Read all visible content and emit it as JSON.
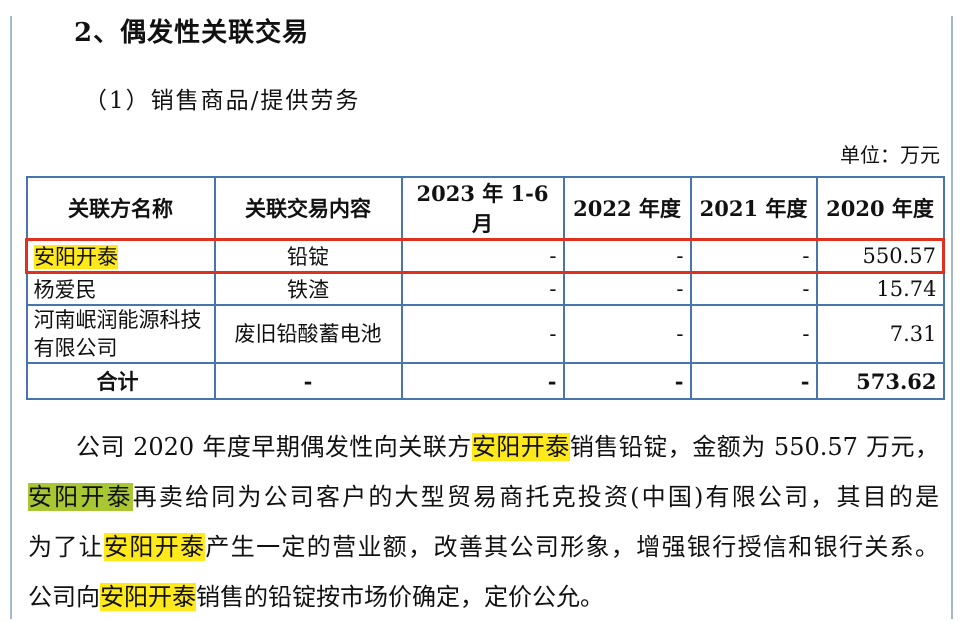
{
  "page": {
    "title": "2、偶发性关联交易",
    "subtitle": "（1）销售商品/提供劳务",
    "unit_label": "单位：万元"
  },
  "colors": {
    "table_border": "#4676ac",
    "red_box": "#e0301e",
    "highlight_yellow": "#ffe91a",
    "highlight_green": "#a9c633",
    "frame_line": "#a3b8cc"
  },
  "table": {
    "headers": [
      "关联方名称",
      "关联交易内容",
      "2023 年 1-6 月",
      "2022 年度",
      "2021 年度",
      "2020 年度"
    ],
    "rows": [
      {
        "name": "安阳开泰",
        "name_highlight": true,
        "red_box": true,
        "content": "铅锭",
        "values": [
          "-",
          "-",
          "-",
          "550.57"
        ]
      },
      {
        "name": "杨爱民",
        "name_highlight": false,
        "red_box": false,
        "content": "铁渣",
        "values": [
          "-",
          "-",
          "-",
          "15.74"
        ]
      },
      {
        "name": "河南岷润能源科技有限公司",
        "name_highlight": false,
        "red_box": false,
        "tall": true,
        "content": "废旧铅酸蓄电池",
        "values": [
          "-",
          "-",
          "-",
          "7.31"
        ]
      }
    ],
    "total_row": {
      "name": "合计",
      "content": "-",
      "values": [
        "-",
        "-",
        "-",
        "573.62"
      ]
    }
  },
  "paragraph": {
    "lines": [
      {
        "indent": true,
        "justify": true,
        "segments": [
          {
            "t": "公司 2020 年度早期偶发性向关联方"
          },
          {
            "t": "安阳开泰",
            "h": "yellow"
          },
          {
            "t": "销售铅锭，金额为 550.57 万元，"
          }
        ]
      },
      {
        "indent": false,
        "justify": true,
        "segments": [
          {
            "t": "安阳开泰",
            "h": "green"
          },
          {
            "t": "再卖给同为公司客户的大型贸易商托克投资(中国)有限公司，其目的是"
          }
        ]
      },
      {
        "indent": false,
        "justify": true,
        "segments": [
          {
            "t": "为了让"
          },
          {
            "t": "安阳开泰",
            "h": "yellow"
          },
          {
            "t": "产生一定的营业额，改善其公司形象，增强银行授信和银行关系。"
          }
        ]
      },
      {
        "indent": false,
        "justify": false,
        "segments": [
          {
            "t": "公司向"
          },
          {
            "t": "安阳开泰",
            "h": "yellow"
          },
          {
            "t": "销售的铅锭按市场价确定，定价公允。"
          }
        ]
      }
    ]
  }
}
